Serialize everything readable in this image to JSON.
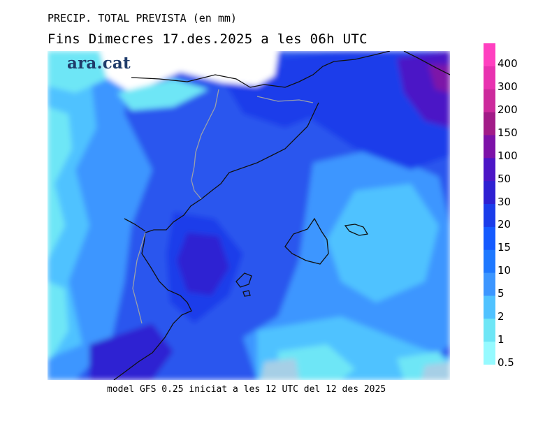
{
  "header": {
    "title": "PRECIP. TOTAL PREVISTA (en mm)",
    "subtitle": "Fins Dimecres  17.des.2025 a les 06h UTC"
  },
  "footer": {
    "model_info": "model GFS 0.25 iniciat a les 12 UTC del 12 des 2025"
  },
  "logo": {
    "text": "ara.cat"
  },
  "legend": {
    "unit": "mm",
    "levels": [
      {
        "label": "400",
        "color": "#ff40c0"
      },
      {
        "label": "300",
        "color": "#e832b0"
      },
      {
        "label": "200",
        "color": "#cc2a9c"
      },
      {
        "label": "150",
        "color": "#a21c88"
      },
      {
        "label": "100",
        "color": "#7d12a8"
      },
      {
        "label": "50",
        "color": "#4c16c6"
      },
      {
        "label": "30",
        "color": "#2e20d2"
      },
      {
        "label": "20",
        "color": "#1a3cea"
      },
      {
        "label": "15",
        "color": "#145aff"
      },
      {
        "label": "10",
        "color": "#1e78ff"
      },
      {
        "label": "5",
        "color": "#3c96ff"
      },
      {
        "label": "2",
        "color": "#50c2ff"
      },
      {
        "label": "1",
        "color": "#6ee6f6"
      },
      {
        "label": "0.5",
        "color": "#96faff"
      }
    ]
  },
  "map": {
    "background_color": "#2a56ee",
    "land_border_color": "#111111",
    "region_border_color": "#9aa0aa"
  }
}
